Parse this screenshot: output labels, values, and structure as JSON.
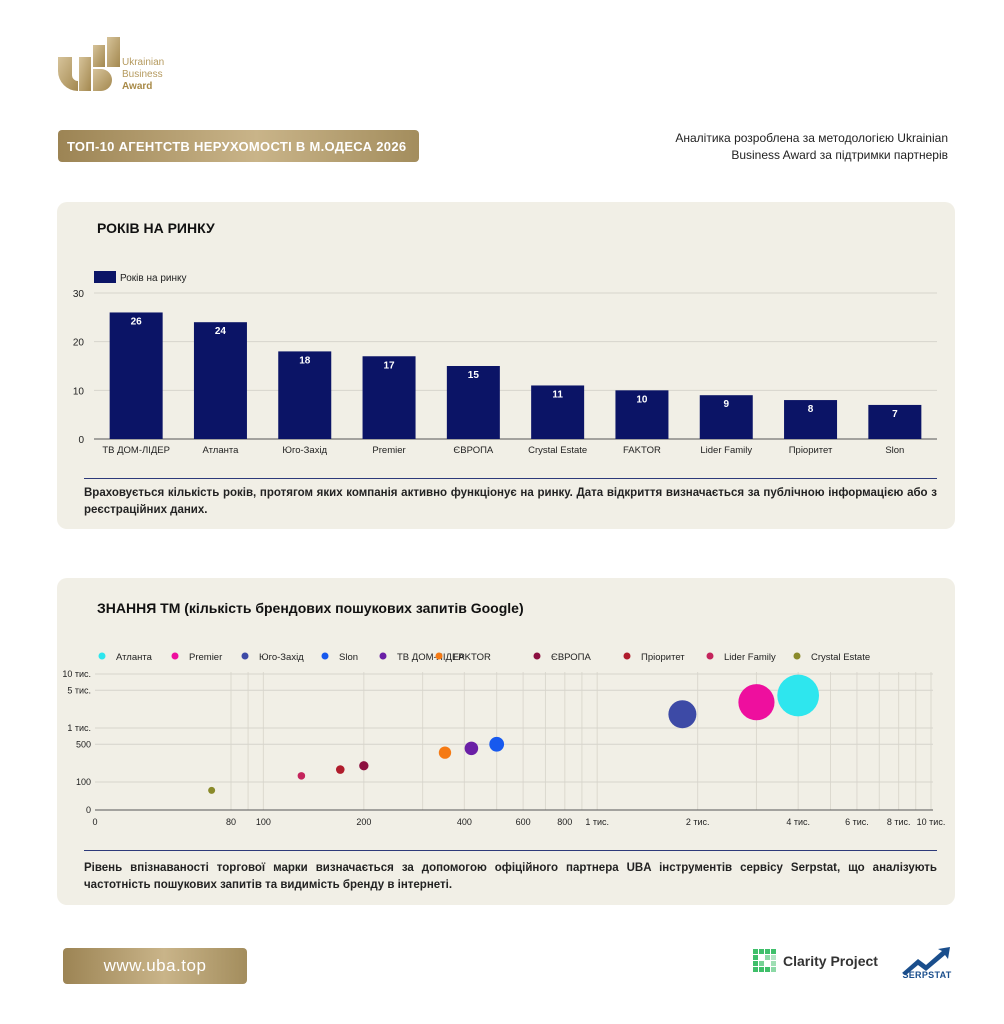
{
  "brand": {
    "logo_line1": "Ukrainian",
    "logo_line2": "Business",
    "logo_line3": "Award",
    "banner_title": "ТОП-10 АГЕНТСТВ НЕРУХОМОСТІ В М.ОДЕСА 2026",
    "methodology": "Аналітика розроблена за методологією Ukrainian Business Award за підтримки партнерів",
    "gold": "#b59a5e"
  },
  "section1": {
    "title": "РОКІВ НА РИНКУ",
    "note": "Враховується кількість років, протягом яких компанія активно функціонує на ринку. Дата відкриття визначається за публічною інформацією або з реєстраційних даних."
  },
  "section2": {
    "title": "ЗНАННЯ ТМ (кількість брендових пошукових запитів Google)",
    "note": "Рівень впізнаваності торгової марки визначається за допомогою офіційного партнера UBA інструментів сервісу Serpstat, що аналізують частотність пошукових запитів та видимість бренду в інтернеті."
  },
  "footer": {
    "url": "www.uba.top",
    "partner1": "Clarity Project",
    "partner2": "SERPSTAT"
  },
  "chart_data": [
    {
      "type": "bar",
      "categories": [
        "ТВ ДОМ-ЛІДЕР",
        "Атланта",
        "Юго-Захід",
        "Premier",
        "ЄВРОПА",
        "Crystal Estate",
        "FAKTOR",
        "Lider Family",
        "Пріоритет",
        "Slon"
      ],
      "series": [
        {
          "name": "Років на ринку",
          "values": [
            26,
            24,
            18,
            17,
            15,
            11,
            10,
            9,
            8,
            7
          ],
          "color": "#0b1466"
        }
      ],
      "ylim": [
        0,
        30
      ],
      "yticks": [
        "0",
        "10",
        "20",
        "30"
      ],
      "legend": "top-left",
      "grid": true
    },
    {
      "type": "scatter",
      "xscale": "log",
      "yscale": "log",
      "xtick_values": [
        0,
        80,
        100,
        200,
        400,
        600,
        800,
        1000,
        2000,
        4000,
        6000,
        8000,
        10000
      ],
      "xtick_labels": [
        "0",
        "80",
        "100",
        "200",
        "400",
        "600",
        "800",
        "1 тис.",
        "2 тис.",
        "4 тис.",
        "6 тис.",
        "8 тис.",
        "10 тис."
      ],
      "ytick_values": [
        0,
        100,
        500,
        1000,
        5000,
        10000
      ],
      "ytick_labels": [
        "0",
        "100",
        "500",
        "1 тис.",
        "5 тис.",
        "10 тис."
      ],
      "legend": "top",
      "grid": true,
      "series": [
        {
          "name": "Атланта",
          "color": "#2ee6ee",
          "x": 4000,
          "y": 4000
        },
        {
          "name": "Premier",
          "color": "#ee0f9e",
          "x": 3000,
          "y": 3000
        },
        {
          "name": "Юго-Захід",
          "color": "#3d4aa6",
          "x": 1800,
          "y": 1800
        },
        {
          "name": "Slon",
          "color": "#1759ee",
          "x": 500,
          "y": 500
        },
        {
          "name": "ТВ ДОМ-ЛІДЕР",
          "color": "#6a1fa6",
          "x": 420,
          "y": 420
        },
        {
          "name": "FAKTOR",
          "color": "#f57a14",
          "x": 350,
          "y": 350
        },
        {
          "name": "ЄВРОПА",
          "color": "#8c1040",
          "x": 200,
          "y": 200
        },
        {
          "name": "Пріоритет",
          "color": "#b01c2c",
          "x": 170,
          "y": 170
        },
        {
          "name": "Lider Family",
          "color": "#c4245c",
          "x": 130,
          "y": 130
        },
        {
          "name": "Crystal Estate",
          "color": "#8a8a2a",
          "x": 70,
          "y": 70
        }
      ]
    }
  ]
}
